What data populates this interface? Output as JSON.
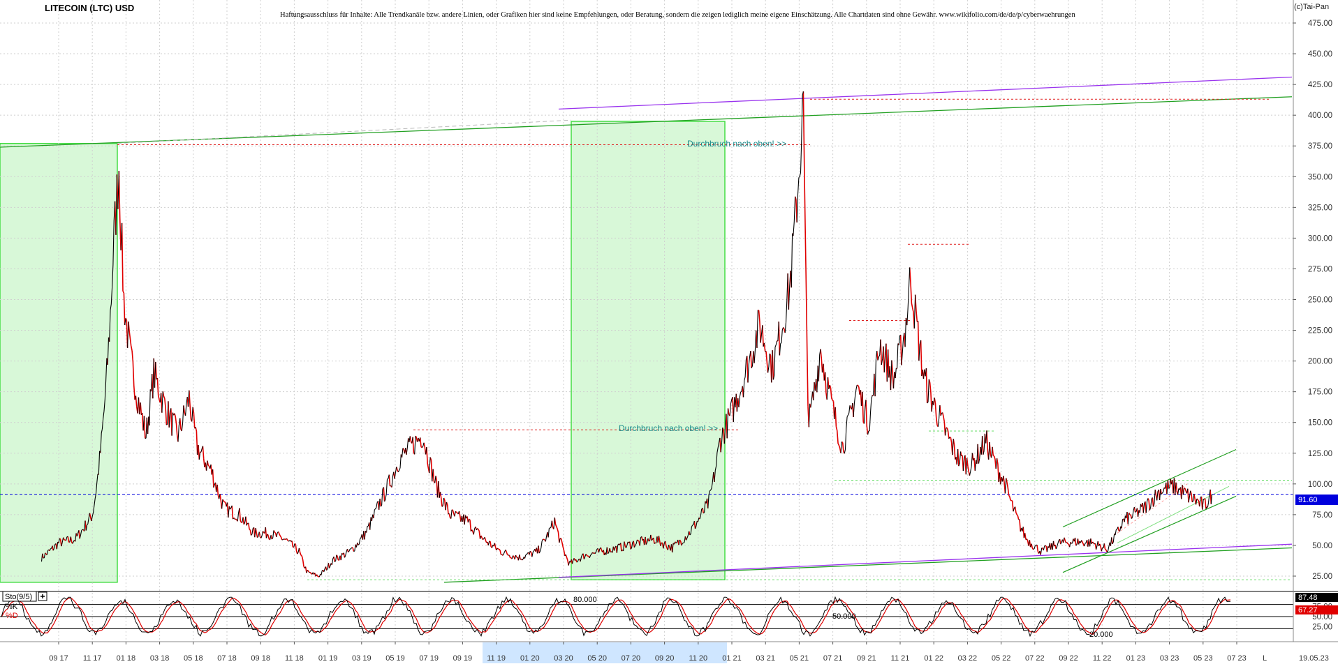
{
  "header": {
    "title": "LITECOIN (LTC) USD",
    "disclaimer": "Haftungsausschluss für Inhalte: Alle Trendkanäle bzw. andere Linien, oder Grafiken hier sind keine Empfehlungen, oder Beratung, sondern die zeigen lediglich meine eigene Einschätzung. Alle Chartdaten sind ohne Gewähr. www.wikifolio.com/de/de/p/cyberwaehrungen",
    "copyright": "(c)Tai-Pan"
  },
  "annotations": {
    "breakout_1": "Durchbruch nach oben! >>",
    "breakout_2": "Durchbruch nach oben! >>",
    "current_price": "91.60",
    "stoch_label": "Sto(9/5)",
    "k_label": "%K",
    "d_label": "%D",
    "k_value": "87.48",
    "d_value": "67.27",
    "stoch_80": "80.000",
    "stoch_50": "50.000",
    "stoch_20": "20.000",
    "stoch_box_icon": "plus-box-icon",
    "last_date": "19.05.23",
    "scroll_l": "L"
  },
  "colors": {
    "price_up": "#000000",
    "price_down": "#e00000",
    "channel_green": "#22a022",
    "channel_purple": "#9933ee",
    "current_price_line": "#0000dd",
    "resistance_red": "#e02020",
    "highlight_fill": "#d8f8d8",
    "highlight_border": "#44dd44",
    "axis_label_blue": "#0000cc",
    "stoch_k": "#000000",
    "stoch_d": "#e00000"
  },
  "chart_data": [
    {
      "type": "line",
      "title": "LITECOIN (LTC) USD",
      "xlabel": "",
      "ylabel": "",
      "ylim": [
        20,
        480
      ],
      "grid": true,
      "y_ticks": [
        "25.00",
        "50.00",
        "75.00",
        "100.00",
        "125.00",
        "150.00",
        "175.00",
        "200.00",
        "225.00",
        "250.00",
        "275.00",
        "300.00",
        "325.00",
        "350.00",
        "375.00",
        "400.00",
        "425.00",
        "450.00",
        "475.00"
      ],
      "x_ticks": [
        "09 17",
        "11 17",
        "01 18",
        "03 18",
        "05 18",
        "07 18",
        "09 18",
        "11 18",
        "01 19",
        "03 19",
        "05 19",
        "07 19",
        "09 19",
        "11 19",
        "01 20",
        "03 20",
        "05 20",
        "07 20",
        "09 20",
        "11 20",
        "01 21",
        "03 21",
        "05 21",
        "07 21",
        "09 21",
        "11 21",
        "01 22",
        "03 22",
        "05 22",
        "07 22",
        "09 22",
        "11 22",
        "01 23",
        "03 23",
        "05 23",
        "07 23"
      ],
      "x_range": [
        "2017-08",
        "2023-07"
      ],
      "series": [
        {
          "x": [
            "2017-08",
            "2017-09",
            "2017-10",
            "2017-11",
            "2017-12-10",
            "2017-12-19",
            "2017-12-28",
            "2018-01-10",
            "2018-02-06",
            "2018-02-20",
            "2018-03-15",
            "2018-04-05",
            "2018-04-25",
            "2018-05-10",
            "2018-06-05",
            "2018-06-28",
            "2018-07-25",
            "2018-08-20",
            "2018-09-15",
            "2018-10-15",
            "2018-11-10",
            "2018-11-25",
            "2018-12-15",
            "2019-01-10",
            "2019-02-10",
            "2019-03-10",
            "2019-04-05",
            "2019-05-10",
            "2019-06-10",
            "2019-06-22",
            "2019-07-15",
            "2019-08-10",
            "2019-09-10",
            "2019-10-10",
            "2019-11-10",
            "2019-12-15",
            "2020-01-15",
            "2020-02-15",
            "2020-03-13",
            "2020-04-10",
            "2020-05-10",
            "2020-06-10",
            "2020-07-10",
            "2020-08-15",
            "2020-09-15",
            "2020-10-15",
            "2020-11-20",
            "2020-12-10",
            "2021-01-10",
            "2021-02-20",
            "2021-03-15",
            "2021-04-15",
            "2021-05-10",
            "2021-05-20",
            "2021-06-10",
            "2021-07-20",
            "2021-08-15",
            "2021-09-05",
            "2021-09-25",
            "2021-10-20",
            "2021-11-10",
            "2021-11-20",
            "2021-12-15",
            "2022-01-20",
            "2022-02-15",
            "2022-03-10",
            "2022-04-05",
            "2022-05-10",
            "2022-06-18",
            "2022-07-15",
            "2022-08-15",
            "2022-09-15",
            "2022-10-15",
            "2022-11-10",
            "2022-12-10",
            "2023-01-15",
            "2023-02-15",
            "2023-03-10",
            "2023-04-15",
            "2023-05-05",
            "2023-05-19"
          ],
          "values": [
            40,
            52,
            55,
            75,
            300,
            360,
            250,
            200,
            140,
            190,
            160,
            140,
            170,
            130,
            110,
            80,
            75,
            60,
            60,
            55,
            45,
            28,
            25,
            38,
            45,
            60,
            85,
            120,
            135,
            140,
            100,
            75,
            70,
            55,
            45,
            40,
            45,
            70,
            35,
            42,
            45,
            48,
            52,
            55,
            48,
            60,
            85,
            135,
            170,
            230,
            195,
            260,
            410,
            150,
            210,
            130,
            180,
            150,
            215,
            185,
            225,
            270,
            185,
            145,
            120,
            115,
            135,
            100,
            55,
            45,
            52,
            53,
            52,
            47,
            70,
            80,
            95,
            98,
            88,
            82,
            91.6
          ]
        }
      ]
    },
    {
      "type": "line",
      "title": "Sto(9/5)",
      "ylim": [
        0,
        100
      ],
      "y_ticks": [
        "25.00",
        "50.00",
        "75.00"
      ],
      "reference_levels": [
        20,
        50,
        80
      ],
      "series": [
        {
          "name": "%K",
          "last": 87.48
        },
        {
          "name": "%D",
          "last": 67.27
        }
      ]
    }
  ]
}
